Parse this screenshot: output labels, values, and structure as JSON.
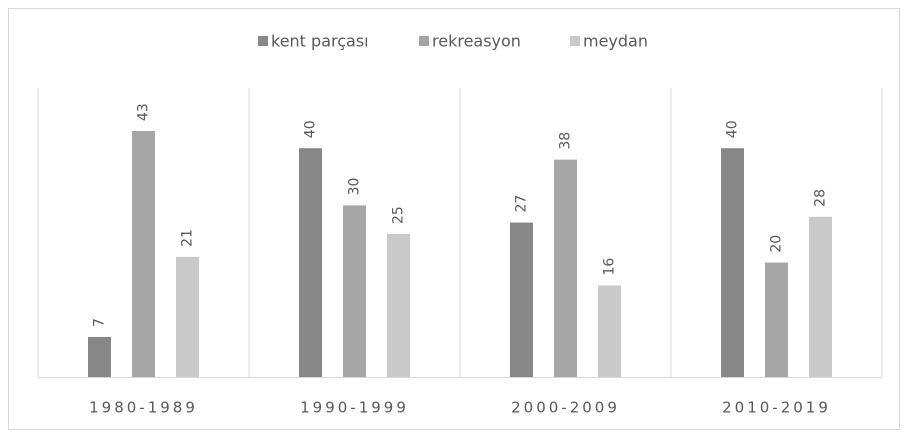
{
  "chart_data": {
    "type": "bar",
    "categories": [
      "1980-1989",
      "1990-1999",
      "2000-2009",
      "2010-2019"
    ],
    "series": [
      {
        "name": "kent parçası",
        "color": "#878787",
        "values": [
          7,
          40,
          27,
          40
        ]
      },
      {
        "name": "rekreasyon",
        "color": "#a5a5a5",
        "values": [
          43,
          30,
          38,
          20
        ]
      },
      {
        "name": "meydan",
        "color": "#c9c9c9",
        "values": [
          21,
          25,
          16,
          28
        ]
      }
    ],
    "ylim": [
      0,
      50
    ],
    "legend": "top",
    "grid": false
  }
}
